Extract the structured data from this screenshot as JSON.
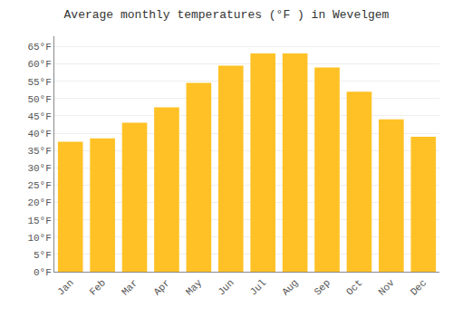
{
  "chart_data": {
    "type": "bar",
    "title": "Average monthly temperatures (°F ) in Wevelgem",
    "categories": [
      "Jan",
      "Feb",
      "Mar",
      "Apr",
      "May",
      "Jun",
      "Jul",
      "Aug",
      "Sep",
      "Oct",
      "Nov",
      "Dec"
    ],
    "values": [
      37.5,
      38.5,
      43.0,
      47.5,
      54.5,
      59.5,
      63.0,
      63.0,
      59.0,
      52.0,
      44.0,
      39.0
    ],
    "color": "#FFC125",
    "ylim": [
      0,
      68
    ],
    "yticks": [
      {
        "value": 0,
        "label": "0°F"
      },
      {
        "value": 5,
        "label": "5°F"
      },
      {
        "value": 10,
        "label": "10°F"
      },
      {
        "value": 15,
        "label": "15°F"
      },
      {
        "value": 20,
        "label": "20°F"
      },
      {
        "value": 25,
        "label": "25°F"
      },
      {
        "value": 30,
        "label": "30°F"
      },
      {
        "value": 35,
        "label": "35°F"
      },
      {
        "value": 40,
        "label": "40°F"
      },
      {
        "value": 45,
        "label": "45°F"
      },
      {
        "value": 50,
        "label": "50°F"
      },
      {
        "value": 55,
        "label": "55°F"
      },
      {
        "value": 60,
        "label": "60°F"
      },
      {
        "value": 65,
        "label": "65°F"
      }
    ],
    "grid": true
  }
}
